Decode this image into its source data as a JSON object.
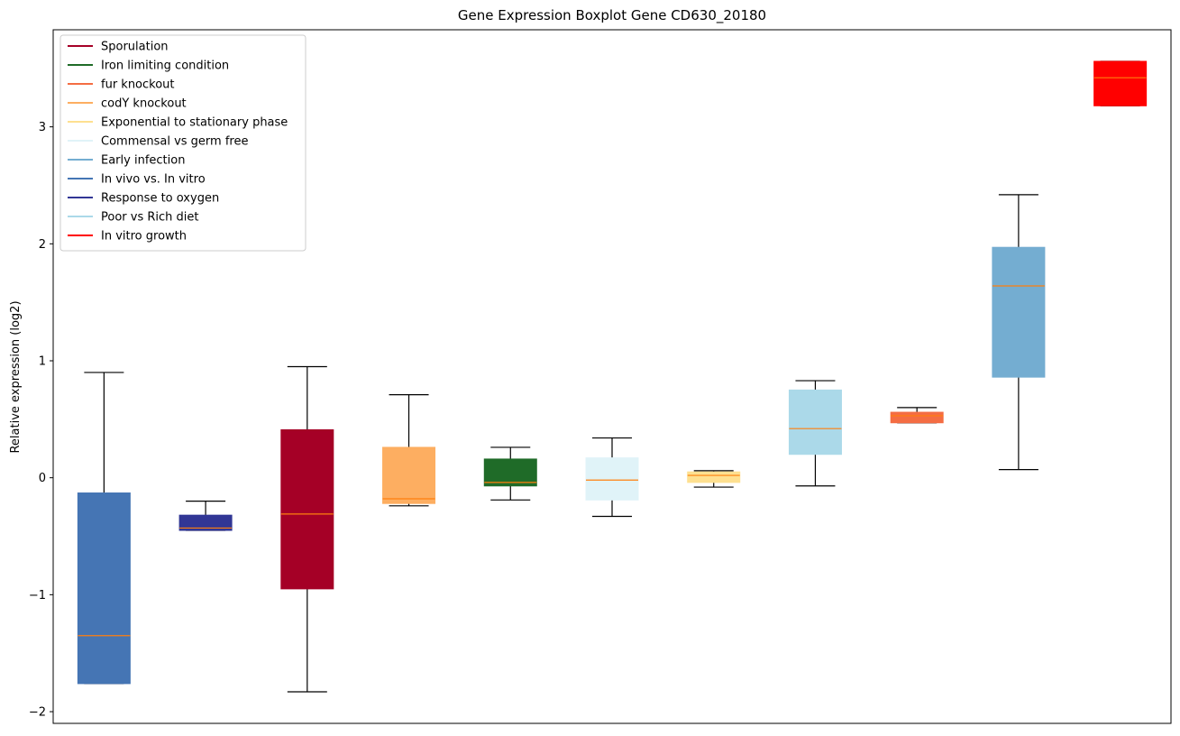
{
  "chart_data": {
    "type": "boxplot",
    "title": "Gene Expression Boxplot Gene CD630_20180",
    "xlabel": "",
    "ylabel": "Relative expression (log2)",
    "ylim": [
      -2.1,
      3.83
    ],
    "yticks": [
      -2,
      -1,
      0,
      1,
      2,
      3
    ],
    "ytick_labels": [
      "−2",
      "−1",
      "0",
      "1",
      "2",
      "3"
    ],
    "grid": false,
    "legend_position": "top-left",
    "median_color": "#ff7f0e",
    "legend": [
      {
        "label": "Sporulation",
        "color": "#a50026"
      },
      {
        "label": "Iron limiting condition",
        "color": "#1f6b28"
      },
      {
        "label": "fur knockout",
        "color": "#f46d43"
      },
      {
        "label": "codY knockout",
        "color": "#fdae61"
      },
      {
        "label": "Exponential to stationary phase",
        "color": "#fee090"
      },
      {
        "label": "Commensal vs germ free",
        "color": "#e0f3f8"
      },
      {
        "label": "Early infection",
        "color": "#74add1"
      },
      {
        "label": "In vivo vs. In vitro",
        "color": "#4575b4"
      },
      {
        "label": "Response to oxygen",
        "color": "#313695"
      },
      {
        "label": "Poor vs Rich diet",
        "color": "#abd9e9"
      },
      {
        "label": "In vitro growth",
        "color": "#ff0000"
      }
    ],
    "series": [
      {
        "name": "In vivo vs. In vitro",
        "color": "#4575b4",
        "whisker_low": -1.76,
        "q1": -1.76,
        "median": -1.35,
        "q3": -0.13,
        "whisker_high": 0.9
      },
      {
        "name": "Response to oxygen",
        "color": "#313695",
        "whisker_low": -0.45,
        "q1": -0.45,
        "median": -0.43,
        "q3": -0.32,
        "whisker_high": -0.2
      },
      {
        "name": "Sporulation",
        "color": "#a50026",
        "whisker_low": -1.83,
        "q1": -0.95,
        "median": -0.31,
        "q3": 0.41,
        "whisker_high": 0.95
      },
      {
        "name": "codY knockout",
        "color": "#fdae61",
        "whisker_low": -0.24,
        "q1": -0.22,
        "median": -0.18,
        "q3": 0.26,
        "whisker_high": 0.71
      },
      {
        "name": "Iron limiting condition",
        "color": "#1f6b28",
        "whisker_low": -0.19,
        "q1": -0.07,
        "median": -0.04,
        "q3": 0.16,
        "whisker_high": 0.26
      },
      {
        "name": "Commensal vs germ free",
        "color": "#e0f3f8",
        "whisker_low": -0.33,
        "q1": -0.19,
        "median": -0.02,
        "q3": 0.17,
        "whisker_high": 0.34
      },
      {
        "name": "Exponential to stationary phase",
        "color": "#fee090",
        "whisker_low": -0.08,
        "q1": -0.04,
        "median": 0.02,
        "q3": 0.05,
        "whisker_high": 0.06
      },
      {
        "name": "Poor vs Rich diet",
        "color": "#abd9e9",
        "whisker_low": -0.07,
        "q1": 0.2,
        "median": 0.42,
        "q3": 0.75,
        "whisker_high": 0.83
      },
      {
        "name": "fur knockout",
        "color": "#f46d43",
        "whisker_low": 0.47,
        "q1": 0.47,
        "median": 0.53,
        "q3": 0.56,
        "whisker_high": 0.6
      },
      {
        "name": "Early infection",
        "color": "#74add1",
        "whisker_low": 0.07,
        "q1": 0.86,
        "median": 1.64,
        "q3": 1.97,
        "whisker_high": 2.42
      },
      {
        "name": "In vitro growth",
        "color": "#ff0000",
        "whisker_low": 3.18,
        "q1": 3.18,
        "median": 3.42,
        "q3": 3.56,
        "whisker_high": 3.56
      }
    ]
  }
}
